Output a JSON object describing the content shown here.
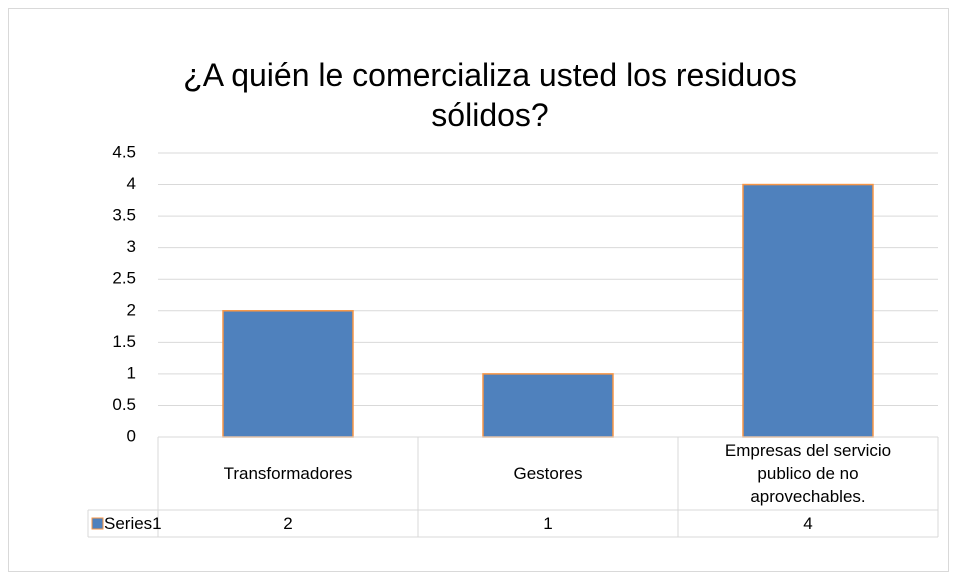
{
  "chart_data": {
    "type": "bar",
    "title": "¿A quién le comercializa usted los residuos sólidos?",
    "categories": [
      "Transformadores",
      "Gestores",
      "Empresas del servicio publico de no aprovechables."
    ],
    "series": [
      {
        "name": "Series1",
        "color": "#4f81bd",
        "values": [
          2,
          1,
          4
        ]
      }
    ],
    "ylim": [
      0,
      4.5
    ],
    "yticks": [
      0,
      0.5,
      1,
      1.5,
      2,
      2.5,
      3,
      3.5,
      4,
      4.5
    ],
    "grid": true
  }
}
